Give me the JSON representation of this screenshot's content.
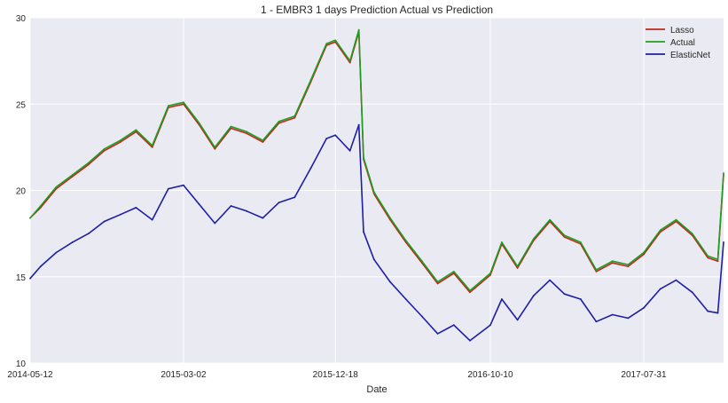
{
  "chart_data": {
    "type": "line",
    "title": "1 - EMBR3 1 days Prediction Actual vs Prediction",
    "xlabel": "Date",
    "ylabel": "",
    "ylim": [
      10,
      30
    ],
    "xlim": [
      "2014-05-12",
      "2017-12-31"
    ],
    "y_ticks": [
      10,
      15,
      20,
      25,
      30
    ],
    "x_ticks": [
      "2014-05-12",
      "2015-03-02",
      "2015-12-18",
      "2016-10-10",
      "2017-07-31"
    ],
    "grid": true,
    "background": "#EAEAF2",
    "legend_position": "top-right",
    "series": [
      {
        "name": "Lasso",
        "color": "#C0281E",
        "x": [
          "2014-05-12",
          "2014-06-01",
          "2014-07-01",
          "2014-08-01",
          "2014-09-01",
          "2014-10-01",
          "2014-11-01",
          "2014-12-01",
          "2015-01-01",
          "2015-02-01",
          "2015-03-02",
          "2015-04-01",
          "2015-05-01",
          "2015-06-01",
          "2015-07-01",
          "2015-08-01",
          "2015-09-01",
          "2015-10-01",
          "2015-11-01",
          "2015-12-01",
          "2015-12-18",
          "2016-01-15",
          "2016-02-01",
          "2016-02-10",
          "2016-03-01",
          "2016-04-01",
          "2016-05-01",
          "2016-06-01",
          "2016-07-01",
          "2016-08-01",
          "2016-09-01",
          "2016-10-10",
          "2016-11-01",
          "2016-12-01",
          "2017-01-01",
          "2017-02-01",
          "2017-03-01",
          "2017-04-01",
          "2017-05-01",
          "2017-06-01",
          "2017-07-01",
          "2017-07-31",
          "2017-09-01",
          "2017-10-01",
          "2017-11-01",
          "2017-12-01",
          "2017-12-20",
          "2017-12-31"
        ],
        "values": [
          18.4,
          19.0,
          20.1,
          20.8,
          21.5,
          22.3,
          22.8,
          23.4,
          22.5,
          24.8,
          25.0,
          23.8,
          22.4,
          23.6,
          23.3,
          22.8,
          23.9,
          24.2,
          26.3,
          28.4,
          28.6,
          27.4,
          29.2,
          21.8,
          19.8,
          18.3,
          17.0,
          15.8,
          14.6,
          15.2,
          14.1,
          15.1,
          16.9,
          15.5,
          17.1,
          18.2,
          17.3,
          16.9,
          15.3,
          15.8,
          15.6,
          16.3,
          17.6,
          18.2,
          17.4,
          16.1,
          15.9,
          20.9
        ]
      },
      {
        "name": "Actual",
        "color": "#1E9E1E",
        "x": [
          "2014-05-12",
          "2014-06-01",
          "2014-07-01",
          "2014-08-01",
          "2014-09-01",
          "2014-10-01",
          "2014-11-01",
          "2014-12-01",
          "2015-01-01",
          "2015-02-01",
          "2015-03-02",
          "2015-04-01",
          "2015-05-01",
          "2015-06-01",
          "2015-07-01",
          "2015-08-01",
          "2015-09-01",
          "2015-10-01",
          "2015-11-01",
          "2015-12-01",
          "2015-12-18",
          "2016-01-15",
          "2016-02-01",
          "2016-02-10",
          "2016-03-01",
          "2016-04-01",
          "2016-05-01",
          "2016-06-01",
          "2016-07-01",
          "2016-08-01",
          "2016-09-01",
          "2016-10-10",
          "2016-11-01",
          "2016-12-01",
          "2017-01-01",
          "2017-02-01",
          "2017-03-01",
          "2017-04-01",
          "2017-05-01",
          "2017-06-01",
          "2017-07-01",
          "2017-07-31",
          "2017-09-01",
          "2017-10-01",
          "2017-11-01",
          "2017-12-01",
          "2017-12-20",
          "2017-12-31"
        ],
        "values": [
          18.4,
          19.1,
          20.2,
          20.9,
          21.6,
          22.4,
          22.9,
          23.5,
          22.6,
          24.9,
          25.1,
          23.9,
          22.5,
          23.7,
          23.4,
          22.9,
          24.0,
          24.3,
          26.4,
          28.5,
          28.7,
          27.5,
          29.3,
          21.9,
          19.9,
          18.4,
          17.1,
          15.9,
          14.7,
          15.3,
          14.2,
          15.2,
          17.0,
          15.6,
          17.2,
          18.3,
          17.4,
          17.0,
          15.4,
          15.9,
          15.7,
          16.4,
          17.7,
          18.3,
          17.5,
          16.2,
          16.0,
          21.0
        ]
      },
      {
        "name": "ElasticNet",
        "color": "#1E1EA8",
        "x": [
          "2014-05-12",
          "2014-06-01",
          "2014-07-01",
          "2014-08-01",
          "2014-09-01",
          "2014-10-01",
          "2014-11-01",
          "2014-12-01",
          "2015-01-01",
          "2015-02-01",
          "2015-03-02",
          "2015-04-01",
          "2015-05-01",
          "2015-06-01",
          "2015-07-01",
          "2015-08-01",
          "2015-09-01",
          "2015-10-01",
          "2015-11-01",
          "2015-12-01",
          "2015-12-18",
          "2016-01-15",
          "2016-02-01",
          "2016-02-10",
          "2016-03-01",
          "2016-04-01",
          "2016-05-01",
          "2016-06-01",
          "2016-07-01",
          "2016-08-01",
          "2016-09-01",
          "2016-10-10",
          "2016-11-01",
          "2016-12-01",
          "2017-01-01",
          "2017-02-01",
          "2017-03-01",
          "2017-04-01",
          "2017-05-01",
          "2017-06-01",
          "2017-07-01",
          "2017-07-31",
          "2017-09-01",
          "2017-10-01",
          "2017-11-01",
          "2017-12-01",
          "2017-12-20",
          "2017-12-31"
        ],
        "values": [
          14.9,
          15.6,
          16.4,
          17.0,
          17.5,
          18.2,
          18.6,
          19.0,
          18.3,
          20.1,
          20.3,
          19.2,
          18.1,
          19.1,
          18.8,
          18.4,
          19.3,
          19.6,
          21.3,
          23.0,
          23.2,
          22.3,
          23.8,
          17.6,
          16.0,
          14.7,
          13.7,
          12.7,
          11.7,
          12.2,
          11.3,
          12.2,
          13.7,
          12.5,
          13.9,
          14.8,
          14.0,
          13.7,
          12.4,
          12.8,
          12.6,
          13.2,
          14.3,
          14.8,
          14.1,
          13.0,
          12.9,
          17.0
        ]
      }
    ]
  }
}
